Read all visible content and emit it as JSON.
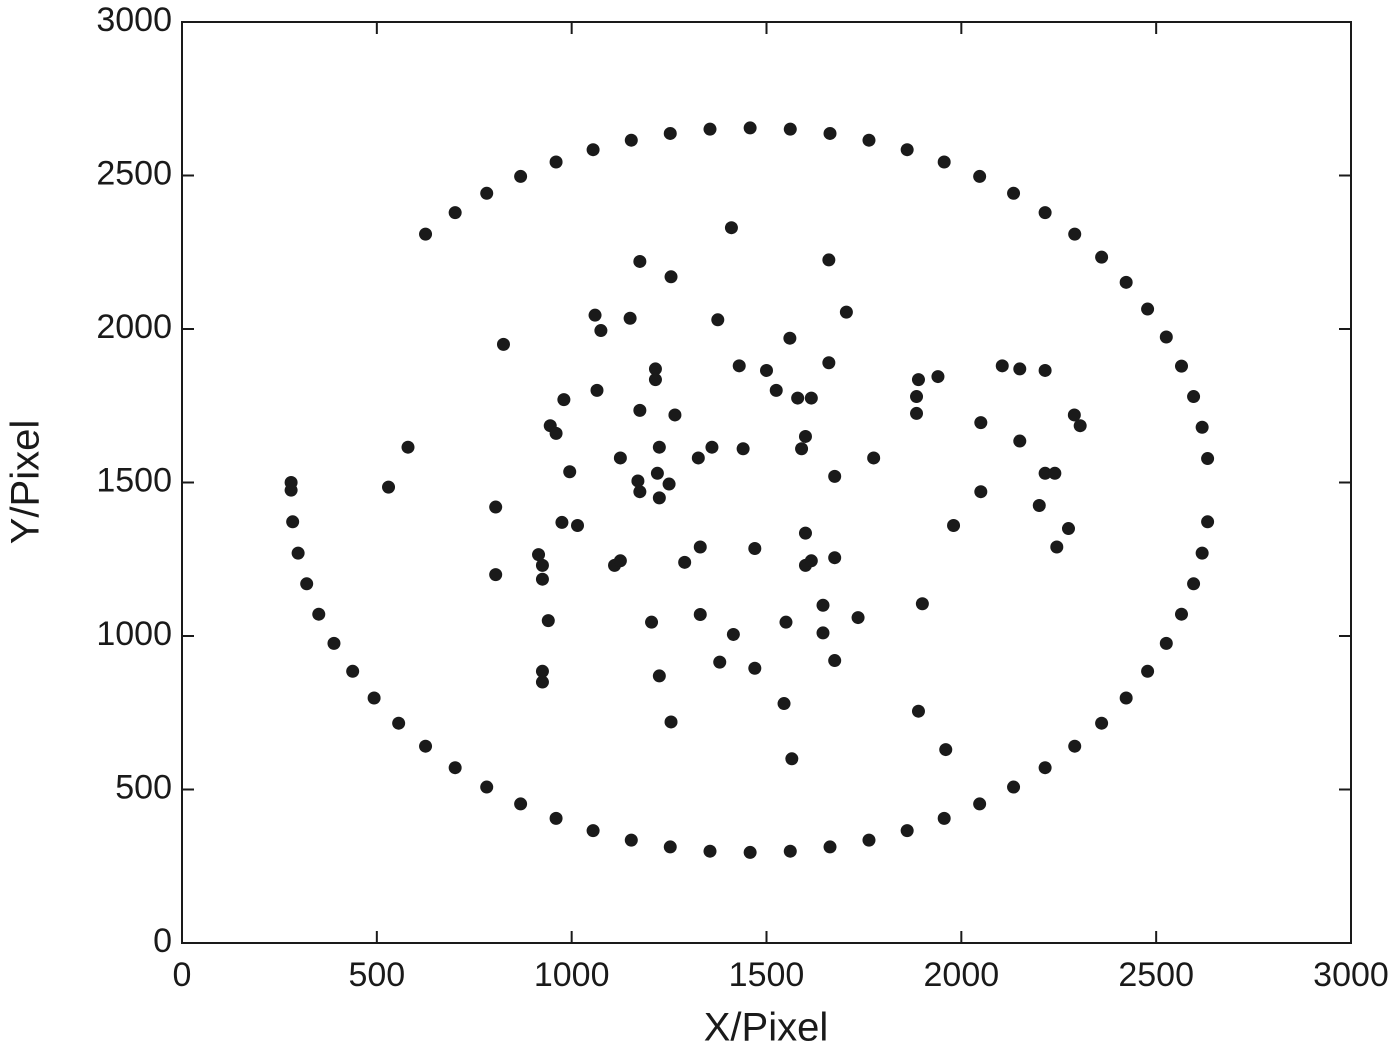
{
  "chart_data": {
    "type": "scatter",
    "x_label": "X/Pixel",
    "y_label": "Y/Pixel",
    "color": "#1a1a1a",
    "xlim": [
      0,
      3000
    ],
    "ylim": [
      0,
      3000
    ],
    "xticks": [
      0,
      500,
      1000,
      1500,
      2000,
      2500,
      3000
    ],
    "yticks": [
      0,
      500,
      1000,
      1500,
      2000,
      2500,
      3000
    ],
    "x": [
      280,
      280,
      284,
      298,
      320,
      351,
      390,
      438,
      493,
      556,
      625,
      701,
      782,
      869,
      960,
      1055,
      1153,
      1253,
      1355,
      1458,
      1561,
      1663,
      1763,
      1861,
      1956,
      2047,
      2134,
      2215,
      2291,
      2360,
      2423,
      2478,
      2526,
      2565,
      2596,
      2618,
      2632,
      2632,
      2618,
      2596,
      2565,
      2526,
      2478,
      2423,
      2360,
      2291,
      2215,
      2134,
      2047,
      1956,
      1861,
      1763,
      1663,
      1561,
      1458,
      1355,
      1253,
      1153,
      1055,
      960,
      869,
      782,
      701,
      625,
      530,
      580,
      825,
      805,
      805,
      915,
      925,
      925,
      940,
      925,
      925,
      945,
      960,
      980,
      995,
      975,
      1015,
      1060,
      1075,
      1065,
      1125,
      1110,
      1125,
      1150,
      1175,
      1255,
      1175,
      1170,
      1175,
      1215,
      1215,
      1225,
      1220,
      1250,
      1225,
      1265,
      1205,
      1225,
      1255,
      1290,
      1325,
      1360,
      1330,
      1330,
      1375,
      1410,
      1430,
      1440,
      1500,
      1525,
      1415,
      1380,
      1470,
      1470,
      1560,
      1580,
      1615,
      1600,
      1590,
      1550,
      1545,
      1565,
      1660,
      1660,
      1705,
      1675,
      1675,
      1600,
      1600,
      1615,
      1645,
      1645,
      1675,
      1735,
      1775,
      1890,
      1885,
      1885,
      1940,
      1900,
      1890,
      1960,
      1980,
      2050,
      2050,
      2105,
      2150,
      2215,
      2150,
      2215,
      2240,
      2200,
      2245,
      2275,
      2290,
      2305
    ],
    "values": [
      1500,
      1475,
      1372,
      1270,
      1170,
      1071,
      976,
      885,
      798,
      716,
      641,
      571,
      508,
      453,
      406,
      366,
      335,
      313,
      299,
      295,
      299,
      313,
      335,
      366,
      406,
      453,
      508,
      571,
      641,
      716,
      798,
      885,
      976,
      1071,
      1170,
      1270,
      1372,
      1578,
      1680,
      1780,
      1879,
      1974,
      2065,
      2152,
      2234,
      2309,
      2379,
      2442,
      2497,
      2544,
      2584,
      2615,
      2637,
      2651,
      2655,
      2651,
      2637,
      2615,
      2584,
      2544,
      2497,
      2442,
      2379,
      2309,
      1485,
      1615,
      1950,
      1420,
      1200,
      1265,
      1230,
      1185,
      1050,
      885,
      850,
      1685,
      1660,
      1770,
      1535,
      1370,
      1360,
      2045,
      1995,
      1800,
      1580,
      1230,
      1245,
      2035,
      2220,
      2170,
      1735,
      1505,
      1470,
      1870,
      1835,
      1615,
      1530,
      1495,
      1450,
      1720,
      1045,
      870,
      720,
      1240,
      1580,
      1615,
      1290,
      1070,
      2030,
      2330,
      1880,
      1610,
      1865,
      1800,
      1005,
      915,
      1285,
      895,
      1970,
      1775,
      1775,
      1650,
      1610,
      1045,
      780,
      600,
      2225,
      1890,
      2055,
      1520,
      1255,
      1335,
      1230,
      1245,
      1100,
      1010,
      920,
      1060,
      1580,
      1835,
      1780,
      1725,
      1845,
      1105,
      755,
      630,
      1360,
      1695,
      1470,
      1880,
      1870,
      1865,
      1635,
      1530,
      1530,
      1425,
      1290,
      1350,
      1720,
      1685
    ]
  }
}
